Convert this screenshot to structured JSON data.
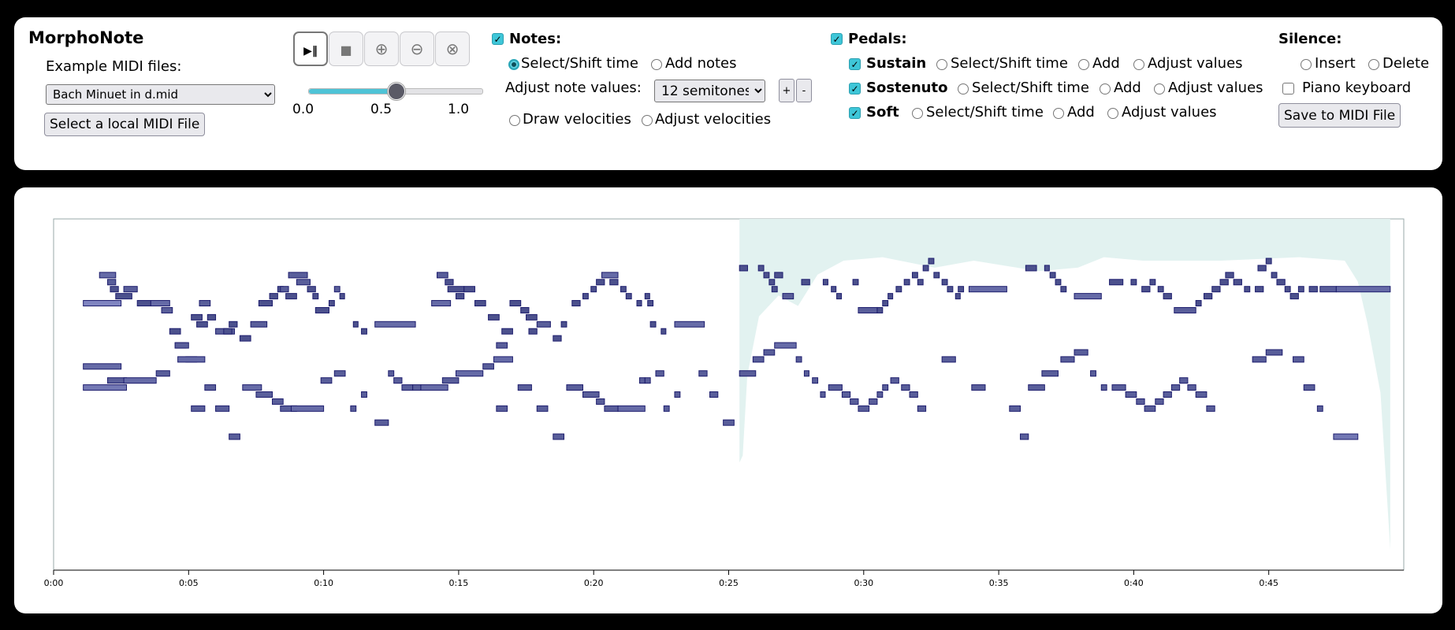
{
  "app": {
    "title": "MorphoNote"
  },
  "midi": {
    "example_label": "Example MIDI files:",
    "selected_file": "Bach Minuet in d.mid",
    "local_button": "Select a local MIDI File"
  },
  "transport": {
    "play_pause_icon": "play-pause-icon",
    "stop_icon": "stop-icon",
    "zoom_in_icon": "zoom-in-icon",
    "zoom_out_icon": "zoom-out-icon",
    "reset_icon": "reset-icon",
    "slider_value": 0.5,
    "slider_min_label": "0.0",
    "slider_mid_label": "0.5",
    "slider_max_label": "1.0"
  },
  "notes": {
    "label": "Notes:",
    "checked": true,
    "select_shift": "Select/Shift time",
    "add_notes": "Add notes",
    "adjust_label": "Adjust note values:",
    "semitones_value": "12 semitones",
    "plus": "+",
    "minus": "-",
    "draw_velocities": "Draw velocities",
    "adjust_velocities": "Adjust velocities"
  },
  "pedals": {
    "label": "Pedals:",
    "rows": [
      {
        "name": "Sustain",
        "select": "Select/Shift time",
        "add": "Add",
        "adjust": "Adjust values"
      },
      {
        "name": "Sostenuto",
        "select": "Select/Shift time",
        "add": "Add",
        "adjust": "Adjust values"
      },
      {
        "name": "Soft",
        "select": "Select/Shift time",
        "add": "Add",
        "adjust": "Adjust values"
      }
    ]
  },
  "silence": {
    "label": "Silence:",
    "insert": "Insert",
    "delete": "Delete",
    "piano_keyboard": "Piano keyboard",
    "save_button": "Save to MIDI File"
  },
  "chart_data": {
    "type": "piano-roll",
    "xlabel": "time",
    "x_range_seconds": [
      0,
      50
    ],
    "selection_start_seconds": 25.4,
    "selection_end_seconds": 49.5,
    "x_ticks": [
      "0:00",
      "0:05",
      "0:10",
      "0:15",
      "0:20",
      "0:25",
      "0:30",
      "0:35",
      "0:40",
      "0:45"
    ],
    "x_tick_seconds": [
      0,
      5,
      10,
      15,
      20,
      25,
      30,
      35,
      40,
      45
    ],
    "pitch_range": [
      36,
      86
    ],
    "notes": [
      [
        1.1,
        2.5,
        74,
        0.4
      ],
      [
        1.7,
        2.3,
        78,
        0.6
      ],
      [
        2.0,
        2.3,
        77,
        0.7
      ],
      [
        2.1,
        2.4,
        76,
        0.8
      ],
      [
        2.3,
        2.9,
        75,
        0.8
      ],
      [
        2.6,
        3.1,
        76,
        0.7
      ],
      [
        3.1,
        3.6,
        74,
        0.8
      ],
      [
        3.6,
        4.3,
        74,
        0.6
      ],
      [
        4.0,
        4.4,
        73,
        0.7
      ],
      [
        4.3,
        4.7,
        70,
        0.8
      ],
      [
        4.5,
        4.9,
        68,
        0.8
      ],
      [
        4.9,
        5.3,
        66,
        0.7
      ],
      [
        5.1,
        5.5,
        72,
        0.8
      ],
      [
        5.3,
        5.7,
        71,
        0.8
      ],
      [
        5.4,
        5.8,
        74,
        0.7
      ],
      [
        5.7,
        6.0,
        72,
        0.8
      ],
      [
        6.0,
        6.7,
        70,
        0.7
      ],
      [
        6.3,
        6.6,
        70,
        0.8
      ],
      [
        6.5,
        6.8,
        71,
        0.8
      ],
      [
        6.9,
        7.3,
        69,
        0.8
      ],
      [
        7.3,
        7.9,
        71,
        0.7
      ],
      [
        7.6,
        8.1,
        74,
        0.8
      ],
      [
        8.0,
        8.3,
        75,
        0.8
      ],
      [
        8.3,
        8.5,
        76,
        0.8
      ],
      [
        8.4,
        8.7,
        76,
        0.7
      ],
      [
        8.6,
        9.0,
        75,
        0.8
      ],
      [
        8.7,
        9.4,
        78,
        0.7
      ],
      [
        9.0,
        9.5,
        77,
        0.7
      ],
      [
        9.4,
        9.7,
        76,
        0.8
      ],
      [
        9.6,
        9.8,
        75,
        0.8
      ],
      [
        9.7,
        10.2,
        73,
        0.8
      ],
      [
        10.2,
        10.4,
        74,
        0.8
      ],
      [
        10.4,
        10.6,
        76,
        0.7
      ],
      [
        10.6,
        10.7,
        75,
        0.8
      ],
      [
        11.1,
        11.2,
        71,
        0.8
      ],
      [
        11.4,
        11.6,
        70,
        0.8
      ],
      [
        11.9,
        13.4,
        71,
        0.6
      ],
      [
        14.0,
        14.7,
        74,
        0.6
      ],
      [
        14.2,
        14.6,
        78,
        0.7
      ],
      [
        14.5,
        14.8,
        77,
        0.8
      ],
      [
        14.6,
        15.2,
        76,
        0.8
      ],
      [
        14.9,
        15.2,
        75,
        0.8
      ],
      [
        15.2,
        15.6,
        76,
        0.8
      ],
      [
        15.6,
        16.0,
        74,
        0.8
      ],
      [
        16.1,
        16.5,
        72,
        0.8
      ],
      [
        16.4,
        16.8,
        68,
        0.7
      ],
      [
        16.6,
        17.0,
        70,
        0.8
      ],
      [
        16.9,
        17.3,
        74,
        0.8
      ],
      [
        17.3,
        17.6,
        73,
        0.8
      ],
      [
        17.5,
        17.9,
        72,
        0.8
      ],
      [
        17.6,
        17.9,
        70,
        0.8
      ],
      [
        17.9,
        18.4,
        71,
        0.7
      ],
      [
        18.5,
        18.8,
        69,
        0.8
      ],
      [
        18.8,
        19.0,
        71,
        0.8
      ],
      [
        19.2,
        19.5,
        74,
        0.8
      ],
      [
        19.6,
        19.8,
        75,
        0.8
      ],
      [
        19.9,
        20.1,
        76,
        0.8
      ],
      [
        20.1,
        20.4,
        77,
        0.8
      ],
      [
        20.3,
        20.9,
        78,
        0.6
      ],
      [
        20.6,
        20.9,
        77,
        0.8
      ],
      [
        21.0,
        21.2,
        76,
        0.8
      ],
      [
        21.2,
        21.4,
        75,
        0.8
      ],
      [
        21.6,
        21.7,
        74,
        0.8
      ],
      [
        21.9,
        22.0,
        75,
        0.8
      ],
      [
        22.0,
        22.2,
        74,
        0.8
      ],
      [
        22.1,
        22.3,
        71,
        0.8
      ],
      [
        22.5,
        22.6,
        70,
        0.8
      ],
      [
        23.0,
        24.1,
        71,
        0.6
      ],
      [
        25.4,
        25.7,
        79,
        0.8
      ],
      [
        26.1,
        26.3,
        79,
        0.8
      ],
      [
        26.3,
        26.5,
        78,
        0.8
      ],
      [
        26.5,
        26.7,
        77,
        0.8
      ],
      [
        26.6,
        26.8,
        76,
        0.8
      ],
      [
        26.7,
        27.0,
        78,
        0.8
      ],
      [
        27.0,
        27.4,
        75,
        0.7
      ],
      [
        27.7,
        28.0,
        77,
        0.8
      ],
      [
        28.5,
        28.6,
        77,
        0.8
      ],
      [
        28.8,
        28.9,
        76,
        0.8
      ],
      [
        29.0,
        29.1,
        75,
        0.8
      ],
      [
        29.6,
        29.8,
        77,
        0.8
      ],
      [
        29.8,
        30.5,
        73,
        0.7
      ],
      [
        30.5,
        30.7,
        73,
        0.8
      ],
      [
        30.7,
        30.9,
        74,
        0.8
      ],
      [
        30.9,
        31.0,
        75,
        0.8
      ],
      [
        31.2,
        31.4,
        76,
        0.8
      ],
      [
        31.5,
        31.7,
        77,
        0.8
      ],
      [
        31.8,
        32.0,
        78,
        0.8
      ],
      [
        32.0,
        32.2,
        77,
        0.8
      ],
      [
        32.2,
        32.4,
        79,
        0.8
      ],
      [
        32.4,
        32.6,
        80,
        0.8
      ],
      [
        32.6,
        32.8,
        78,
        0.8
      ],
      [
        32.9,
        33.1,
        77,
        0.8
      ],
      [
        33.1,
        33.3,
        76,
        0.8
      ],
      [
        33.4,
        33.5,
        75,
        0.8
      ],
      [
        33.5,
        33.7,
        76,
        0.8
      ],
      [
        33.9,
        35.3,
        76,
        0.6
      ],
      [
        36.0,
        36.4,
        79,
        0.8
      ],
      [
        36.7,
        36.8,
        79,
        0.8
      ],
      [
        36.9,
        37.1,
        78,
        0.8
      ],
      [
        37.1,
        37.3,
        77,
        0.8
      ],
      [
        37.3,
        37.5,
        76,
        0.8
      ],
      [
        37.8,
        38.8,
        75,
        0.6
      ],
      [
        39.1,
        39.6,
        77,
        0.8
      ],
      [
        39.9,
        40.1,
        77,
        0.8
      ],
      [
        40.3,
        40.6,
        76,
        0.8
      ],
      [
        40.6,
        40.8,
        77,
        0.8
      ],
      [
        40.9,
        41.1,
        76,
        0.8
      ],
      [
        41.1,
        41.4,
        75,
        0.8
      ],
      [
        41.5,
        42.3,
        73,
        0.7
      ],
      [
        42.3,
        42.5,
        74,
        0.8
      ],
      [
        42.6,
        42.9,
        75,
        0.8
      ],
      [
        42.9,
        43.2,
        76,
        0.8
      ],
      [
        43.2,
        43.5,
        77,
        0.8
      ],
      [
        43.4,
        43.7,
        78,
        0.8
      ],
      [
        43.7,
        44.0,
        77,
        0.8
      ],
      [
        44.1,
        44.3,
        76,
        0.8
      ],
      [
        44.5,
        44.8,
        76,
        0.8
      ],
      [
        44.6,
        44.9,
        79,
        0.8
      ],
      [
        44.9,
        45.1,
        80,
        0.8
      ],
      [
        45.1,
        45.3,
        78,
        0.8
      ],
      [
        45.3,
        45.6,
        77,
        0.8
      ],
      [
        45.6,
        45.8,
        76,
        0.8
      ],
      [
        45.8,
        46.1,
        75,
        0.8
      ],
      [
        46.1,
        46.3,
        76,
        0.8
      ],
      [
        46.5,
        46.8,
        76,
        0.8
      ],
      [
        46.9,
        47.5,
        76,
        0.7
      ],
      [
        47.5,
        49.5,
        76,
        0.6
      ],
      [
        1.1,
        2.5,
        65,
        0.6
      ],
      [
        1.1,
        2.7,
        62,
        0.5
      ],
      [
        2.0,
        2.7,
        63,
        0.7
      ],
      [
        2.6,
        3.8,
        63,
        0.6
      ],
      [
        3.8,
        4.3,
        64,
        0.7
      ],
      [
        4.5,
        5.0,
        68,
        0.7
      ],
      [
        4.6,
        5.6,
        66,
        0.6
      ],
      [
        5.1,
        5.6,
        59,
        0.7
      ],
      [
        5.6,
        6.0,
        62,
        0.7
      ],
      [
        6.0,
        6.5,
        59,
        0.7
      ],
      [
        6.5,
        6.9,
        55,
        0.7
      ],
      [
        7.0,
        7.7,
        62,
        0.6
      ],
      [
        7.5,
        8.1,
        61,
        0.7
      ],
      [
        8.1,
        8.5,
        60,
        0.7
      ],
      [
        8.4,
        9.0,
        59,
        0.7
      ],
      [
        8.8,
        10.0,
        59,
        0.6
      ],
      [
        9.9,
        10.3,
        63,
        0.7
      ],
      [
        10.4,
        10.8,
        64,
        0.7
      ],
      [
        11.0,
        11.2,
        59,
        0.7
      ],
      [
        11.4,
        11.6,
        61,
        0.7
      ],
      [
        11.9,
        12.4,
        57,
        0.7
      ],
      [
        12.4,
        12.6,
        64,
        0.7
      ],
      [
        12.6,
        12.9,
        63,
        0.7
      ],
      [
        12.9,
        13.3,
        62,
        0.7
      ],
      [
        13.3,
        13.6,
        62,
        0.7
      ],
      [
        13.6,
        14.6,
        62,
        0.6
      ],
      [
        14.4,
        15.0,
        63,
        0.7
      ],
      [
        14.9,
        15.9,
        64,
        0.6
      ],
      [
        15.9,
        16.3,
        65,
        0.7
      ],
      [
        16.3,
        17.0,
        66,
        0.6
      ],
      [
        16.4,
        16.8,
        59,
        0.7
      ],
      [
        17.2,
        17.7,
        62,
        0.7
      ],
      [
        17.9,
        18.3,
        59,
        0.7
      ],
      [
        18.5,
        18.9,
        55,
        0.7
      ],
      [
        19.0,
        19.6,
        62,
        0.7
      ],
      [
        19.6,
        20.2,
        61,
        0.7
      ],
      [
        20.1,
        20.4,
        60,
        0.7
      ],
      [
        20.4,
        20.9,
        59,
        0.7
      ],
      [
        20.9,
        21.9,
        59,
        0.6
      ],
      [
        21.7,
        21.9,
        63,
        0.7
      ],
      [
        21.9,
        22.1,
        63,
        0.7
      ],
      [
        22.3,
        22.6,
        64,
        0.7
      ],
      [
        22.6,
        22.8,
        59,
        0.7
      ],
      [
        23.0,
        23.2,
        61,
        0.7
      ],
      [
        23.9,
        24.2,
        64,
        0.7
      ],
      [
        24.3,
        24.6,
        61,
        0.7
      ],
      [
        24.8,
        25.2,
        57,
        0.7
      ],
      [
        25.4,
        26.0,
        64,
        0.7
      ],
      [
        25.9,
        26.3,
        66,
        0.7
      ],
      [
        26.3,
        26.7,
        67,
        0.7
      ],
      [
        26.7,
        27.5,
        68,
        0.6
      ],
      [
        27.5,
        27.7,
        66,
        0.7
      ],
      [
        27.8,
        27.9,
        64,
        0.7
      ],
      [
        28.1,
        28.3,
        63,
        0.7
      ],
      [
        28.4,
        28.5,
        61,
        0.7
      ],
      [
        28.7,
        29.2,
        62,
        0.7
      ],
      [
        29.2,
        29.5,
        61,
        0.7
      ],
      [
        29.5,
        29.8,
        60,
        0.7
      ],
      [
        29.8,
        30.2,
        59,
        0.7
      ],
      [
        30.2,
        30.5,
        60,
        0.7
      ],
      [
        30.5,
        30.7,
        61,
        0.7
      ],
      [
        30.7,
        30.9,
        62,
        0.7
      ],
      [
        31.0,
        31.3,
        63,
        0.7
      ],
      [
        31.4,
        31.7,
        62,
        0.7
      ],
      [
        31.7,
        32.0,
        61,
        0.7
      ],
      [
        32.0,
        32.3,
        59,
        0.7
      ],
      [
        32.9,
        33.4,
        66,
        0.7
      ],
      [
        34.0,
        34.5,
        62,
        0.7
      ],
      [
        35.4,
        35.8,
        59,
        0.7
      ],
      [
        35.8,
        36.1,
        55,
        0.7
      ],
      [
        36.1,
        36.7,
        62,
        0.7
      ],
      [
        36.6,
        37.2,
        64,
        0.7
      ],
      [
        37.3,
        37.8,
        66,
        0.7
      ],
      [
        37.8,
        38.3,
        67,
        0.7
      ],
      [
        38.4,
        38.6,
        64,
        0.7
      ],
      [
        38.8,
        39.0,
        62,
        0.7
      ],
      [
        39.2,
        39.7,
        62,
        0.7
      ],
      [
        39.7,
        40.1,
        61,
        0.7
      ],
      [
        40.1,
        40.4,
        60,
        0.7
      ],
      [
        40.4,
        40.8,
        59,
        0.7
      ],
      [
        40.8,
        41.1,
        60,
        0.7
      ],
      [
        41.1,
        41.4,
        61,
        0.7
      ],
      [
        41.4,
        41.7,
        62,
        0.7
      ],
      [
        41.7,
        42.0,
        63,
        0.7
      ],
      [
        42.0,
        42.3,
        62,
        0.7
      ],
      [
        42.3,
        42.7,
        61,
        0.7
      ],
      [
        42.7,
        43.0,
        59,
        0.7
      ],
      [
        44.4,
        44.9,
        66,
        0.7
      ],
      [
        44.9,
        45.5,
        67,
        0.7
      ],
      [
        45.9,
        46.3,
        66,
        0.7
      ],
      [
        46.3,
        46.7,
        62,
        0.7
      ],
      [
        46.8,
        47.0,
        59,
        0.7
      ],
      [
        47.4,
        48.3,
        55,
        0.5
      ]
    ]
  }
}
